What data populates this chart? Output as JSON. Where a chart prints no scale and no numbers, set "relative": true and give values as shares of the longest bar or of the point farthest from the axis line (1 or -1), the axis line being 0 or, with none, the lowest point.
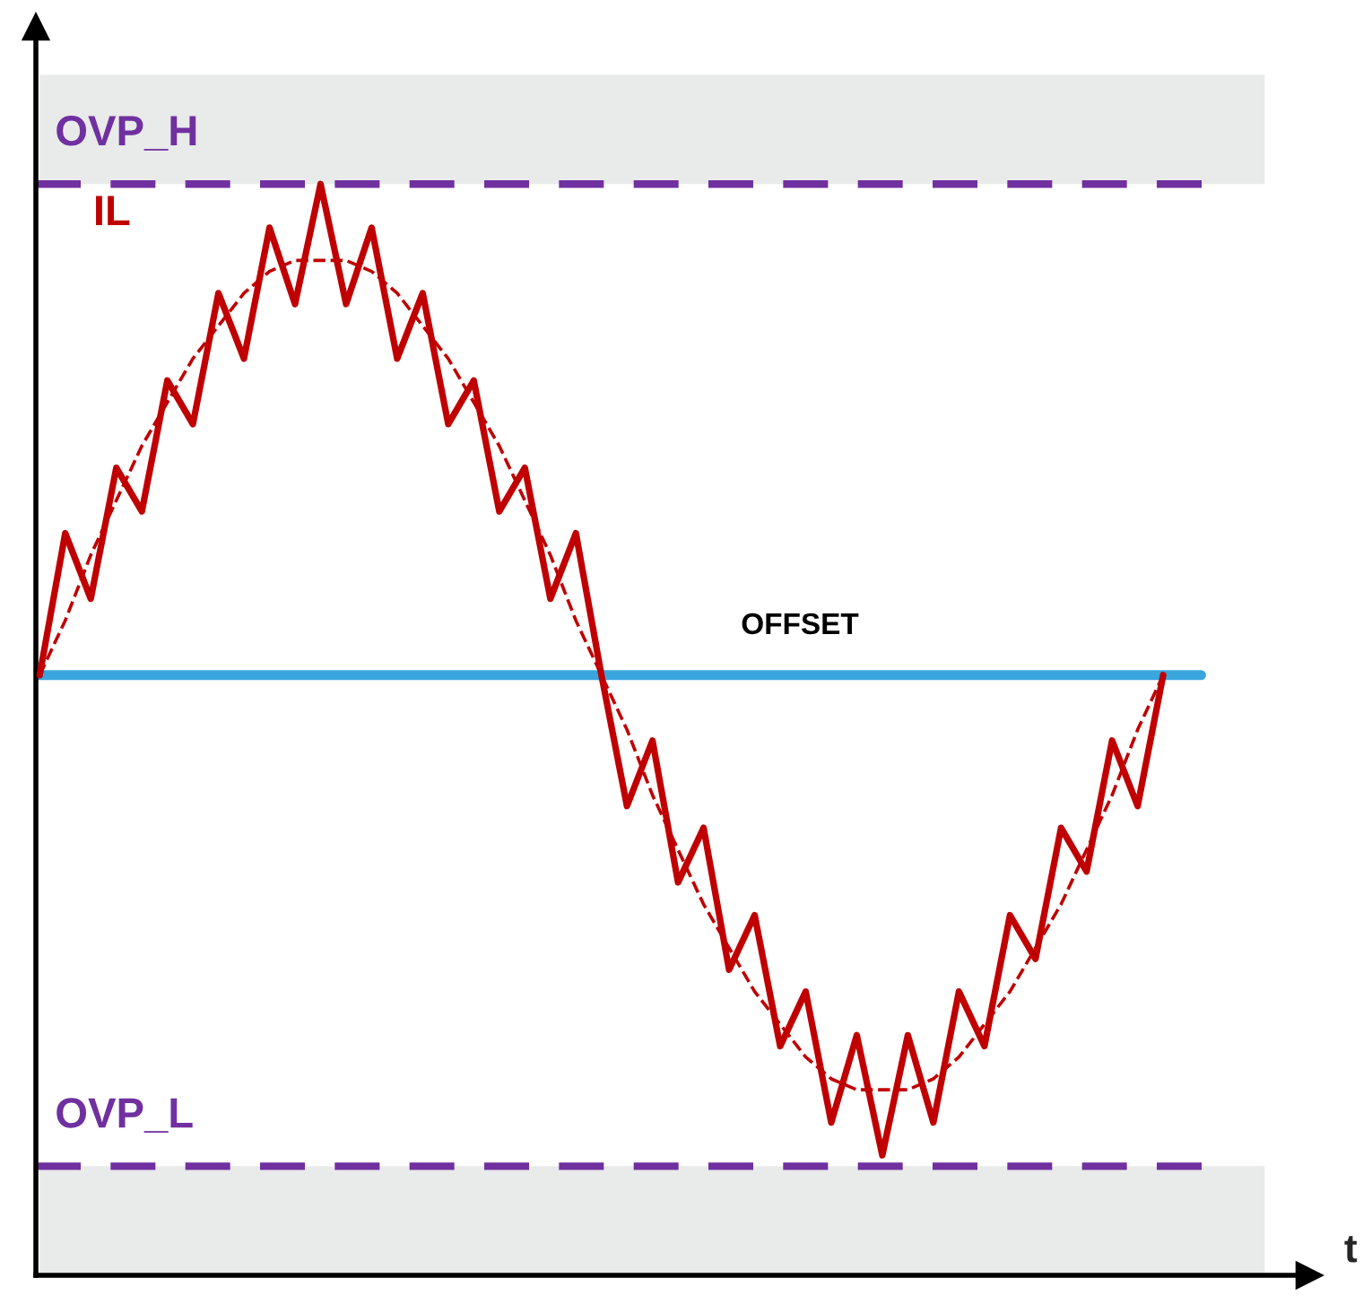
{
  "chart_data": {
    "type": "line",
    "relative": true,
    "xlabel": "t",
    "legend": false,
    "marker": "none",
    "categories": [
      null,
      null,
      null,
      null,
      null,
      null,
      null,
      null,
      null,
      null,
      null,
      null,
      null,
      null,
      null,
      null,
      null,
      null,
      null,
      null,
      null,
      null,
      null,
      null,
      null,
      null,
      null,
      null,
      null,
      null,
      null,
      null,
      null,
      null,
      null,
      null,
      null,
      null,
      null,
      null,
      null,
      null,
      null,
      null,
      null
    ],
    "series": [
      {
        "name": "IL",
        "color": "#c00000",
        "line_style": "solid",
        "values": [
          0.55,
          0.68,
          0.62,
          0.74,
          0.7,
          0.82,
          0.78,
          0.9,
          0.84,
          0.96,
          0.89,
          1.0,
          0.89,
          0.96,
          0.84,
          0.9,
          0.78,
          0.82,
          0.7,
          0.74,
          0.62,
          0.68,
          0.55,
          0.43,
          0.49,
          0.36,
          0.41,
          0.28,
          0.33,
          0.21,
          0.26,
          0.14,
          0.22,
          0.11,
          0.22,
          0.14,
          0.26,
          0.21,
          0.33,
          0.29,
          0.41,
          0.37,
          0.49,
          0.43,
          0.55
        ]
      },
      {
        "color": "#c00000",
        "line_style": "dashed",
        "values": [
          0.55,
          0.6,
          0.66,
          0.71,
          0.76,
          0.8,
          0.84,
          0.87,
          0.9,
          0.92,
          0.93,
          0.93,
          0.93,
          0.92,
          0.9,
          0.87,
          0.84,
          0.8,
          0.76,
          0.71,
          0.66,
          0.6,
          0.55,
          0.5,
          0.44,
          0.39,
          0.34,
          0.3,
          0.26,
          0.23,
          0.2,
          0.18,
          0.17,
          0.17,
          0.17,
          0.18,
          0.2,
          0.23,
          0.26,
          0.3,
          0.34,
          0.39,
          0.44,
          0.5,
          0.55
        ]
      }
    ],
    "ref_lines": [
      {
        "axis": "y",
        "value": 1.0,
        "label": "OVP_H",
        "color": "#7030a0",
        "line_style": "dashed"
      },
      {
        "axis": "y",
        "value": 0.1,
        "label": "OVP_L",
        "color": "#7030a0",
        "line_style": "dashed"
      },
      {
        "axis": "y",
        "value": 0.55,
        "label": "OFFSET",
        "color": "#3aa6dd",
        "line_style": "solid"
      }
    ],
    "bands": [
      {
        "axis": "y",
        "from": 1.0,
        "to": 1.1,
        "color": "#e9eaea"
      },
      {
        "axis": "y",
        "from": 0,
        "to": 0.1,
        "color": "#e9eaea"
      }
    ]
  }
}
